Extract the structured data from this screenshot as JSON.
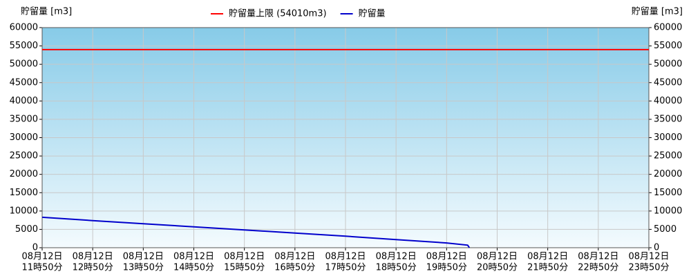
{
  "chart_data": {
    "type": "line",
    "y_label": "貯留量 [m3]",
    "y2_label": "貯留量 [m3]",
    "categories": [
      [
        "08月12日",
        "11時50分"
      ],
      [
        "08月12日",
        "12時50分"
      ],
      [
        "08月12日",
        "13時50分"
      ],
      [
        "08月12日",
        "14時50分"
      ],
      [
        "08月12日",
        "15時50分"
      ],
      [
        "08月12日",
        "16時50分"
      ],
      [
        "08月12日",
        "17時50分"
      ],
      [
        "08月12日",
        "18時50分"
      ],
      [
        "08月12日",
        "19時50分"
      ],
      [
        "08月12日",
        "20時50分"
      ],
      [
        "08月12日",
        "21時50分"
      ],
      [
        "08月12日",
        "22時50分"
      ],
      [
        "08月12日",
        "23時50分"
      ]
    ],
    "threshold": {
      "name": "貯留量上限 (54010m3)",
      "value": 54010,
      "color": "#ff0000"
    },
    "series": [
      {
        "name": "貯留量",
        "color": "#0000cc",
        "x": [
          "08月12日 11時50分",
          "08月12日 12時50分",
          "08月12日 13時50分",
          "08月12日 14時50分",
          "08月12日 15時50分",
          "08月12日 16時50分",
          "08月12日 17時50分",
          "08月12日 18時50分",
          "08月12日 19時50分",
          "08月12日 20時15分",
          "08月12日 20時17分"
        ],
        "values": [
          8300,
          7400,
          6550,
          5700,
          4850,
          4000,
          3150,
          2200,
          1300,
          700,
          0
        ]
      }
    ],
    "ylim": [
      0,
      60000
    ],
    "yticks": [
      0,
      5000,
      10000,
      15000,
      20000,
      25000,
      30000,
      35000,
      40000,
      45000,
      50000,
      55000,
      60000
    ],
    "y2lim": [
      0,
      60000
    ],
    "y2ticks": [
      0,
      5000,
      10000,
      15000,
      20000,
      25000,
      30000,
      35000,
      40000,
      45000,
      50000,
      55000,
      60000
    ],
    "grid": true
  }
}
